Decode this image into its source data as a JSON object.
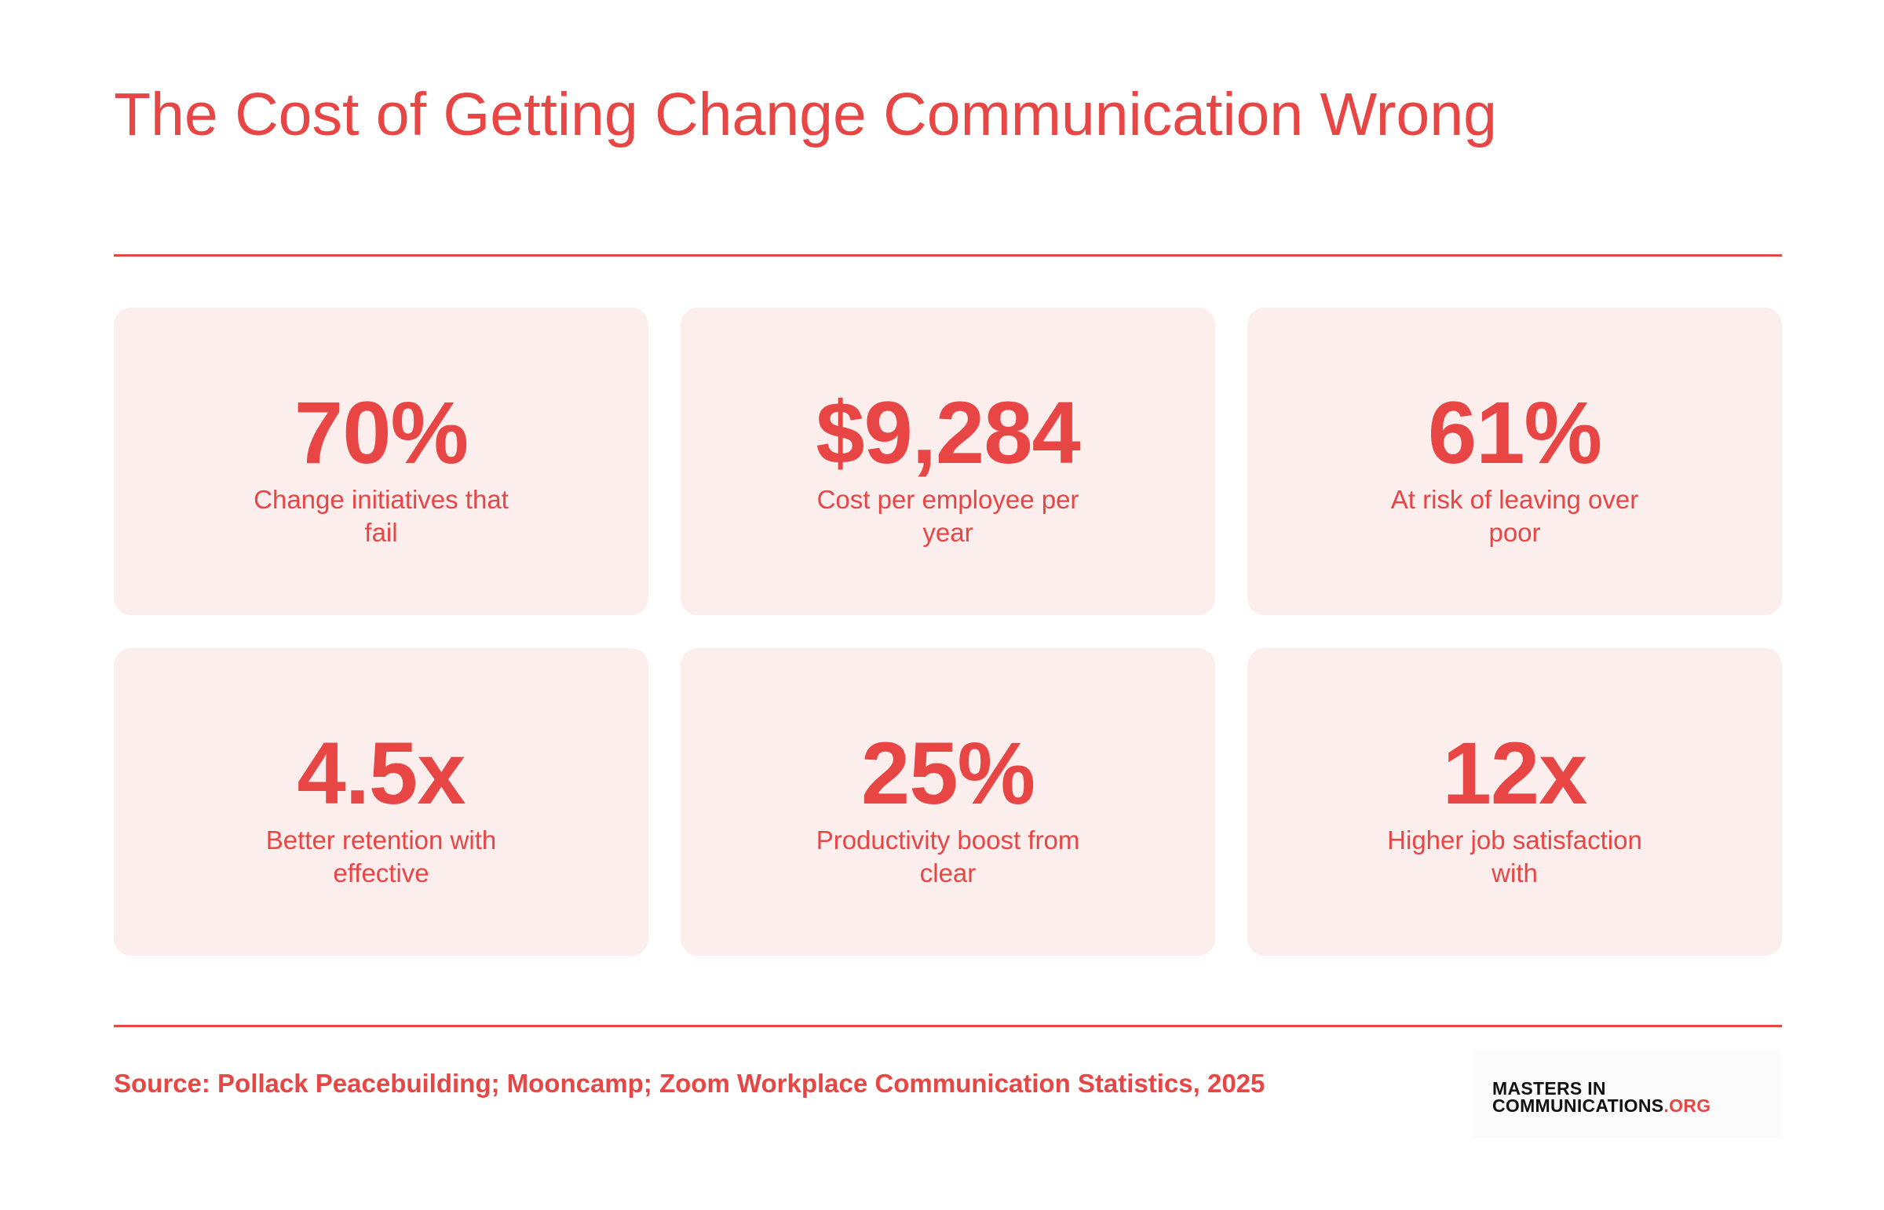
{
  "title": "The Cost of Getting Change Communication Wrong",
  "colors": {
    "accent": "#e84545",
    "card_background": "#fdeeee",
    "logo_text": "#111111"
  },
  "stats": [
    {
      "value": "70%",
      "label": "Change initiatives that fail"
    },
    {
      "value": "$9,284",
      "label": "Cost per employee per year"
    },
    {
      "value": "61%",
      "label": "At risk of leaving over poor"
    },
    {
      "value": "4.5x",
      "label": "Better retention with effective"
    },
    {
      "value": "25%",
      "label": "Productivity boost from clear"
    },
    {
      "value": "12x",
      "label": "Higher job satisfaction with"
    }
  ],
  "source": "Source: Pollack Peacebuilding; Mooncamp; Zoom Workplace Communication Statistics, 2025",
  "logo": {
    "line1": "MASTERS IN",
    "line2_main": "COMMUNICATIONS",
    "line2_suffix": ".ORG"
  }
}
